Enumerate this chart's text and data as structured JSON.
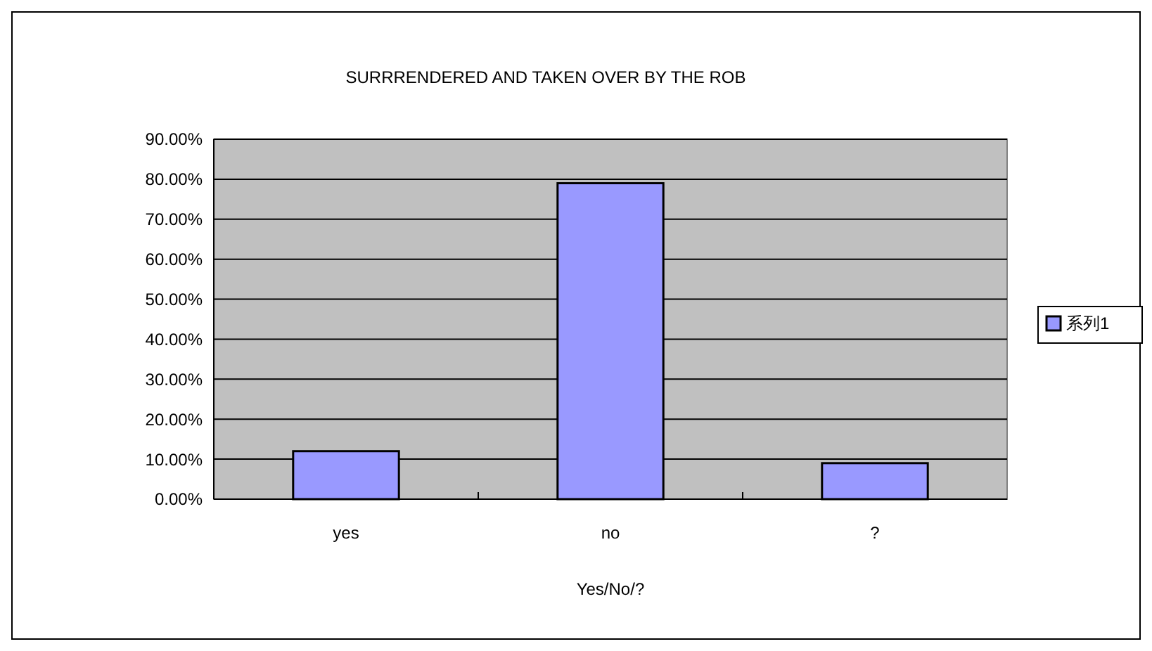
{
  "chart_data": {
    "type": "bar",
    "title": "SURRRENDERED AND TAKEN OVER BY THE ROB",
    "xlabel": "Yes/No/?",
    "categories": [
      "yes",
      "no",
      "?"
    ],
    "series": [
      {
        "name": "系列1",
        "color": "#9999ff",
        "values": [
          12,
          79,
          9
        ]
      }
    ],
    "ylim": [
      0,
      90
    ],
    "yticks": [
      {
        "value": 0,
        "label": "0.00%"
      },
      {
        "value": 10,
        "label": "10.00%"
      },
      {
        "value": 20,
        "label": "20.00%"
      },
      {
        "value": 30,
        "label": "30.00%"
      },
      {
        "value": 40,
        "label": "40.00%"
      },
      {
        "value": 50,
        "label": "50.00%"
      },
      {
        "value": 60,
        "label": "60.00%"
      },
      {
        "value": 70,
        "label": "70.00%"
      },
      {
        "value": 80,
        "label": "80.00%"
      },
      {
        "value": 90,
        "label": "90.00%"
      }
    ],
    "grid": "y",
    "legend": "right"
  }
}
